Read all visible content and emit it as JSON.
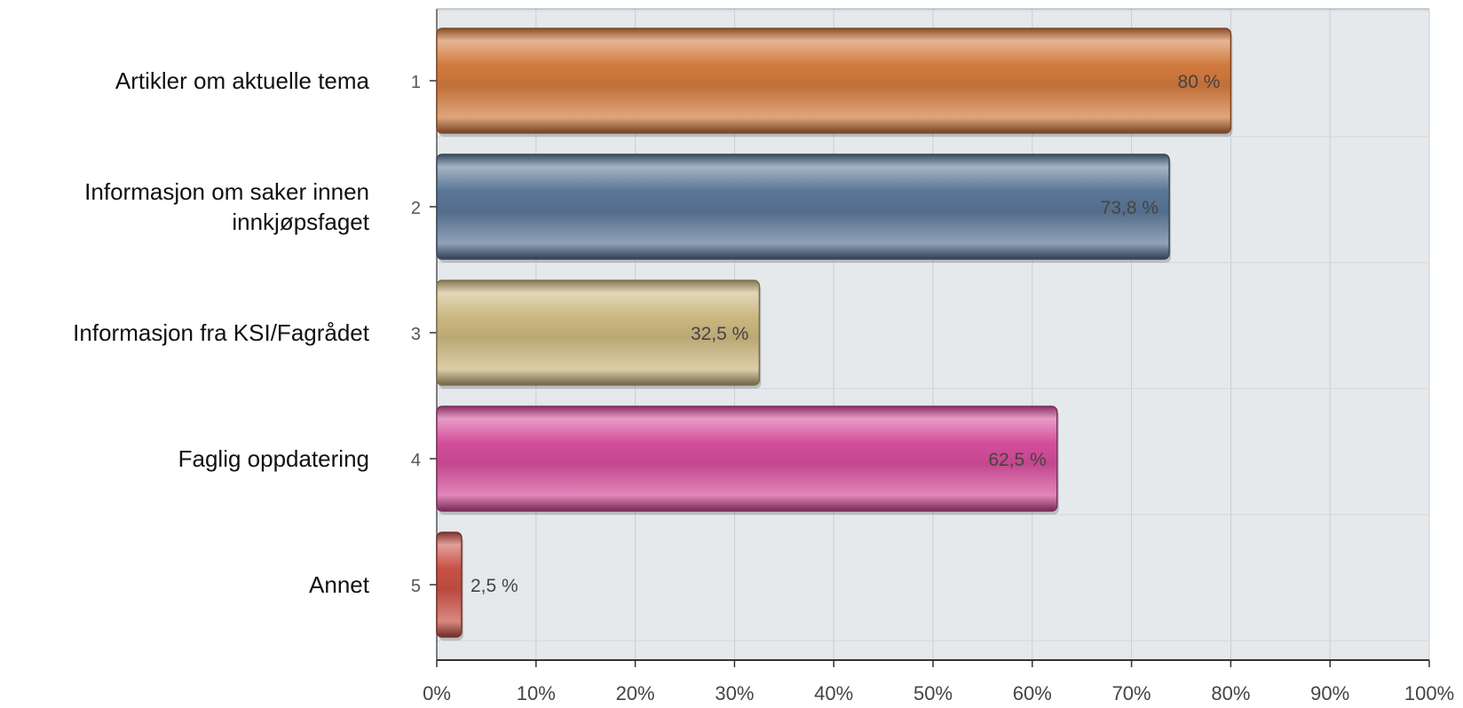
{
  "chart_data": {
    "type": "bar",
    "orientation": "horizontal",
    "categories": [
      "Artikler om aktuelle tema",
      "Informasjon om saker innen innkjøpsfaget",
      "Informasjon fra KSI/Fagrådet",
      "Faglig oppdatering",
      "Annet"
    ],
    "category_lines": [
      [
        "Artikler om aktuelle tema"
      ],
      [
        "Informasjon om saker innen",
        "innkjøpsfaget"
      ],
      [
        "Informasjon fra KSI/Fagrådet"
      ],
      [
        "Faglig oppdatering"
      ],
      [
        "Annet"
      ]
    ],
    "row_numbers": [
      "1",
      "2",
      "3",
      "4",
      "5"
    ],
    "values": [
      80,
      73.8,
      32.5,
      62.5,
      2.5
    ],
    "value_labels": [
      "80 %",
      "73,8 %",
      "32,5 %",
      "62,5 %",
      "2,5 %"
    ],
    "x_ticks": [
      "0%",
      "10%",
      "20%",
      "30%",
      "40%",
      "50%",
      "60%",
      "70%",
      "80%",
      "90%",
      "100%"
    ],
    "xlim": [
      0,
      100
    ],
    "grid": true,
    "colors": [
      "#d27a3e",
      "#5b7697",
      "#cbb77f",
      "#d44d9a",
      "#c95045"
    ]
  }
}
